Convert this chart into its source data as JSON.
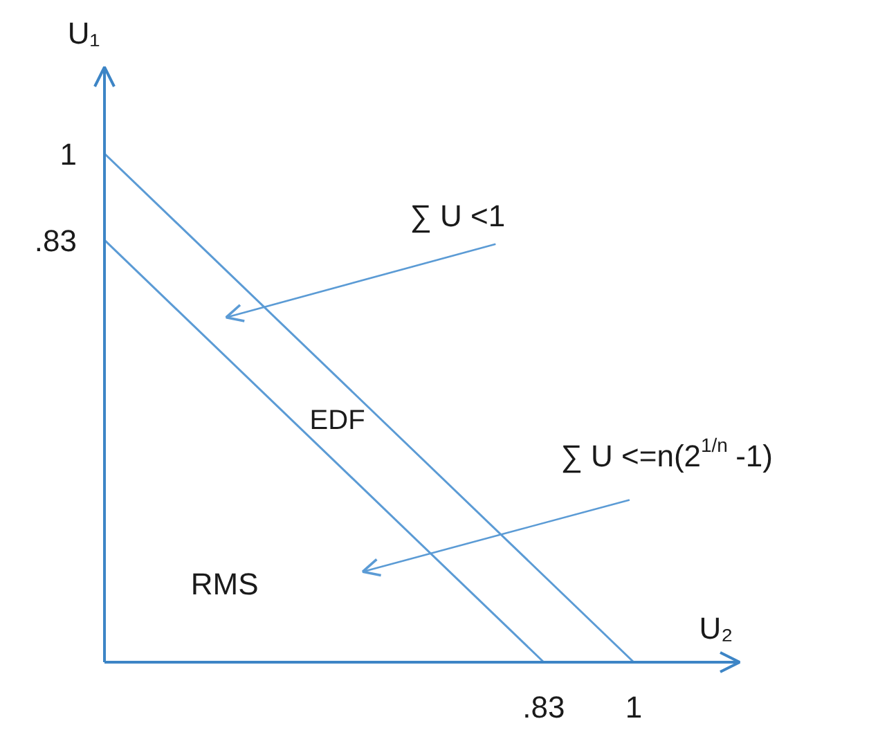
{
  "chart_data": {
    "type": "line",
    "xlabel": "U₂",
    "ylabel": "U₁",
    "xlim": [
      0,
      1.2
    ],
    "ylim": [
      0,
      1.17
    ],
    "xticks": [
      {
        "value": 0.83,
        "label": ".83"
      },
      1
    ],
    "yticks": [
      {
        "value": 0.83,
        "label": ".83"
      },
      1
    ],
    "series": [
      {
        "color": "#5b9bd5",
        "x": [
          0,
          1
        ],
        "values": [
          1,
          0
        ]
      },
      {
        "color": "#5b9bd5",
        "x": [
          0,
          0.83
        ],
        "values": [
          0.83,
          0
        ]
      }
    ],
    "annotations": [
      "∑ U <1",
      "EDF",
      "∑ U <=n(2$^{1/n}$ -1)",
      "RMS"
    ],
    "grid": false,
    "line_style": "solid"
  }
}
